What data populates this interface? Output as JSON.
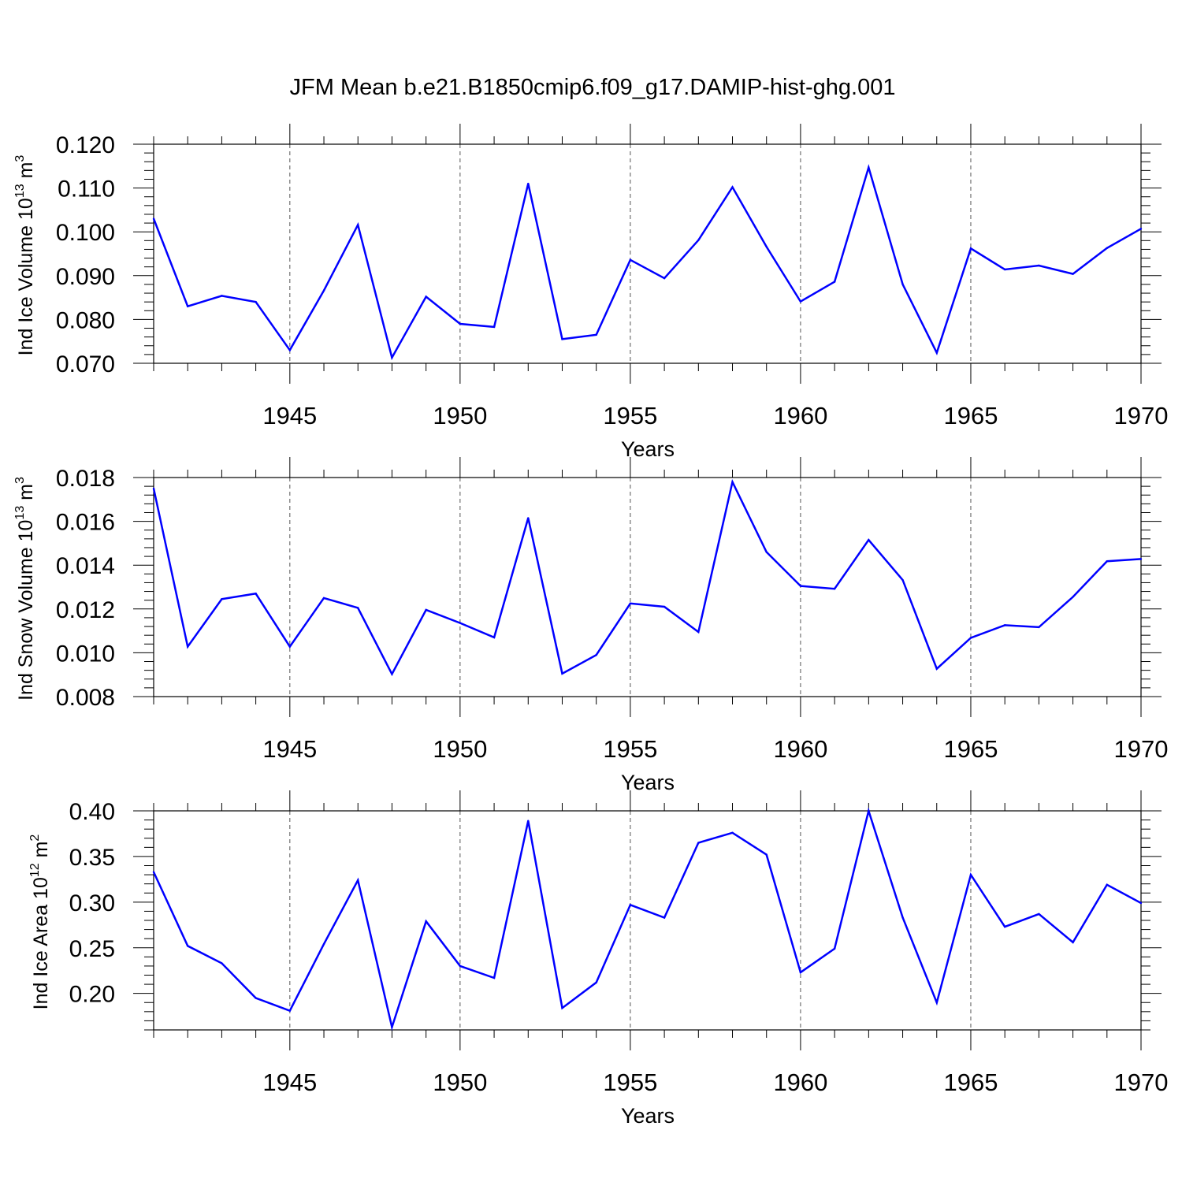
{
  "title": "JFM Mean b.e21.B1850cmip6.f09_g17.DAMIP-hist-ghg.001",
  "colors": {
    "series": "#0000ff",
    "axis": "#000000",
    "grid": "#555555"
  },
  "chart_data": [
    {
      "type": "line",
      "ylabel": "Ind Ice Volume 10",
      "ylabel_exp": "13",
      "ylabel_unit": " m",
      "ylabel_unit_exp": "3",
      "xlabel": "Years",
      "xlim": [
        1941,
        1970
      ],
      "ylim": [
        0.07,
        0.12
      ],
      "yticks": [
        0.07,
        0.08,
        0.09,
        0.1,
        0.11,
        0.12
      ],
      "ytick_labels": [
        "0.070",
        "0.080",
        "0.090",
        "0.100",
        "0.110",
        "0.120"
      ],
      "xticks": [
        1945,
        1950,
        1955,
        1960,
        1965,
        1970
      ],
      "xtick_labels": [
        "1945",
        "1950",
        "1955",
        "1960",
        "1965",
        "1970"
      ],
      "x": [
        1941,
        1942,
        1943,
        1944,
        1945,
        1946,
        1947,
        1948,
        1949,
        1950,
        1951,
        1952,
        1953,
        1954,
        1955,
        1956,
        1957,
        1958,
        1959,
        1960,
        1961,
        1962,
        1963,
        1964,
        1965,
        1966,
        1967,
        1968,
        1969,
        1970
      ],
      "values": [
        0.103,
        0.083,
        0.0854,
        0.084,
        0.073,
        0.0866,
        0.1016,
        0.0713,
        0.0852,
        0.079,
        0.0783,
        0.111,
        0.0755,
        0.0765,
        0.0936,
        0.0894,
        0.0981,
        0.1102,
        0.0966,
        0.0841,
        0.0886,
        0.1147,
        0.088,
        0.0724,
        0.0962,
        0.0914,
        0.0923,
        0.0904,
        0.0963,
        0.1007
      ]
    },
    {
      "type": "line",
      "ylabel": "Ind Snow Volume 10",
      "ylabel_exp": "13",
      "ylabel_unit": " m",
      "ylabel_unit_exp": "3",
      "xlabel": "Years",
      "xlim": [
        1941,
        1970
      ],
      "ylim": [
        0.008,
        0.018
      ],
      "yticks": [
        0.008,
        0.01,
        0.012,
        0.014,
        0.016,
        0.018
      ],
      "ytick_labels": [
        "0.008",
        "0.010",
        "0.012",
        "0.014",
        "0.016",
        "0.018"
      ],
      "xticks": [
        1945,
        1950,
        1955,
        1960,
        1965,
        1970
      ],
      "xtick_labels": [
        "1945",
        "1950",
        "1955",
        "1960",
        "1965",
        "1970"
      ],
      "x": [
        1941,
        1942,
        1943,
        1944,
        1945,
        1946,
        1947,
        1948,
        1949,
        1950,
        1951,
        1952,
        1953,
        1954,
        1955,
        1956,
        1957,
        1958,
        1959,
        1960,
        1961,
        1962,
        1963,
        1964,
        1965,
        1966,
        1967,
        1968,
        1969,
        1970
      ],
      "values": [
        0.0175,
        0.01028,
        0.01245,
        0.0127,
        0.01028,
        0.0125,
        0.01205,
        0.00903,
        0.01196,
        0.01136,
        0.0107,
        0.01615,
        0.00905,
        0.0099,
        0.01225,
        0.0121,
        0.01095,
        0.0178,
        0.0146,
        0.01305,
        0.01292,
        0.01515,
        0.01332,
        0.00927,
        0.01068,
        0.01126,
        0.01117,
        0.01255,
        0.01418,
        0.01428
      ]
    },
    {
      "type": "line",
      "ylabel": "Ind Ice Area 10",
      "ylabel_exp": "12",
      "ylabel_unit": " m",
      "ylabel_unit_exp": "2",
      "xlabel": "Years",
      "xlim": [
        1941,
        1970
      ],
      "ylim": [
        0.16,
        0.4
      ],
      "yticks": [
        0.2,
        0.25,
        0.3,
        0.35,
        0.4
      ],
      "ytick_labels": [
        "0.20",
        "0.25",
        "0.30",
        "0.35",
        "0.40"
      ],
      "xticks": [
        1945,
        1950,
        1955,
        1960,
        1965,
        1970
      ],
      "xtick_labels": [
        "1945",
        "1950",
        "1955",
        "1960",
        "1965",
        "1970"
      ],
      "x": [
        1941,
        1942,
        1943,
        1944,
        1945,
        1946,
        1947,
        1948,
        1949,
        1950,
        1951,
        1952,
        1953,
        1954,
        1955,
        1956,
        1957,
        1958,
        1959,
        1960,
        1961,
        1962,
        1963,
        1964,
        1965,
        1966,
        1967,
        1968,
        1969,
        1970
      ],
      "values": [
        0.333,
        0.252,
        0.233,
        0.195,
        0.181,
        0.254,
        0.324,
        0.163,
        0.279,
        0.23,
        0.217,
        0.389,
        0.184,
        0.212,
        0.297,
        0.283,
        0.365,
        0.376,
        0.352,
        0.223,
        0.249,
        0.4,
        0.283,
        0.19,
        0.33,
        0.273,
        0.287,
        0.256,
        0.319,
        0.299
      ]
    }
  ]
}
